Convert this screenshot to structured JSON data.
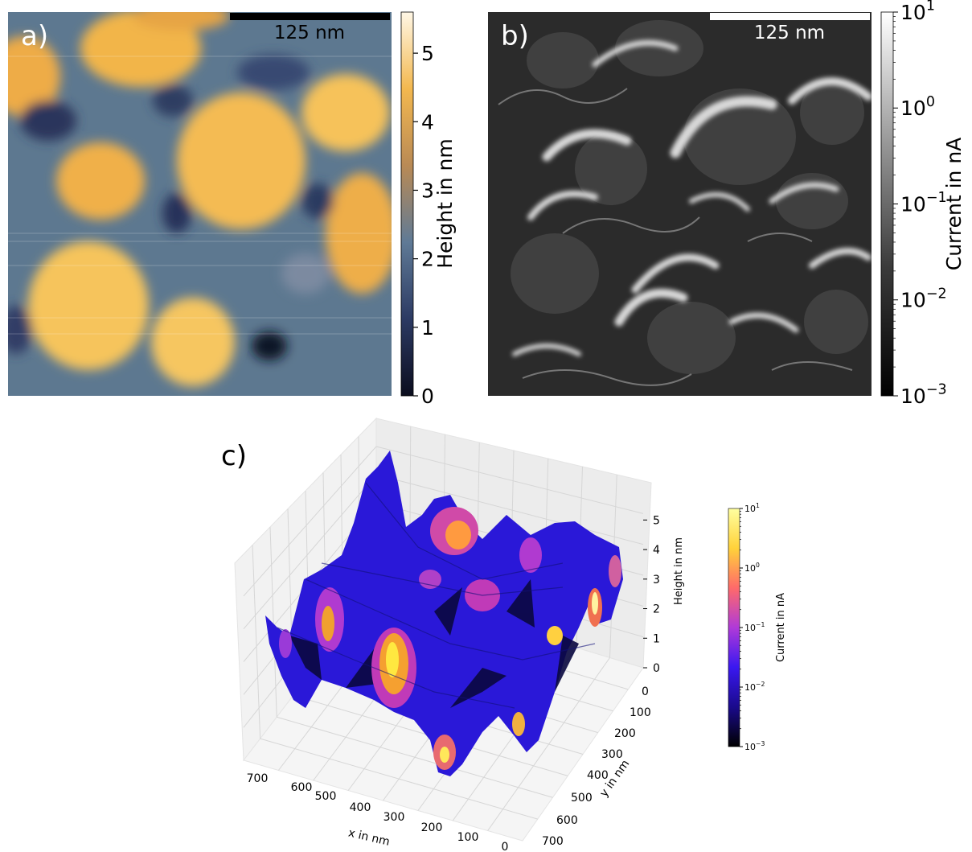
{
  "chart_data": [
    {
      "panel": "a)",
      "type": "heatmap",
      "scalebar_label": "125 nm",
      "colorbar": {
        "label": "Height in nm",
        "scale": "linear",
        "range": [
          0,
          5.6
        ],
        "ticks": [
          "0",
          "1",
          "2",
          "3",
          "4",
          "5"
        ],
        "colors": [
          "#0b0d1e",
          "#2c3a63",
          "#5f7a96",
          "#b98a55",
          "#f3b84f",
          "#fff7e6"
        ]
      }
    },
    {
      "panel": "b)",
      "type": "heatmap",
      "scalebar_label": "125 nm",
      "colorbar": {
        "label": "Current in nA",
        "scale": "log",
        "range": [
          0.001,
          10
        ],
        "ticks": [
          {
            "base": "10",
            "exp": "1"
          },
          {
            "base": "10",
            "exp": "0"
          },
          {
            "base": "10",
            "exp": "−1"
          },
          {
            "base": "10",
            "exp": "−2"
          },
          {
            "base": "10",
            "exp": "−3"
          }
        ],
        "colors": [
          "#000000",
          "#3a3a3a",
          "#9a9a9a",
          "#ffffff"
        ]
      }
    },
    {
      "panel": "c)",
      "type": "surface3d",
      "xlabel": "x in nm",
      "ylabel": "y in nm",
      "zlabel": "Height in nm",
      "xticks": [
        "700",
        "600",
        "500",
        "400",
        "300",
        "200",
        "100",
        "0"
      ],
      "yticks": [
        "0",
        "100",
        "200",
        "300",
        "400",
        "500",
        "600",
        "700"
      ],
      "zticks": [
        "0",
        "1",
        "2",
        "3",
        "4",
        "5"
      ],
      "xlim": [
        0,
        700
      ],
      "ylim": [
        0,
        700
      ],
      "zlim": [
        0,
        5.6
      ],
      "colorbar": {
        "label": "Current in nA",
        "scale": "log",
        "range": [
          0.001,
          10
        ],
        "ticks": [
          {
            "base": "10",
            "exp": "1"
          },
          {
            "base": "10",
            "exp": "0"
          },
          {
            "base": "10",
            "exp": "−1"
          },
          {
            "base": "10",
            "exp": "−2"
          },
          {
            "base": "10",
            "exp": "−3"
          }
        ],
        "colors": [
          "#000000",
          "#1a0a8c",
          "#3a18f0",
          "#b03ad8",
          "#ff6a6a",
          "#ffd23a",
          "#ffffa0"
        ]
      }
    }
  ]
}
